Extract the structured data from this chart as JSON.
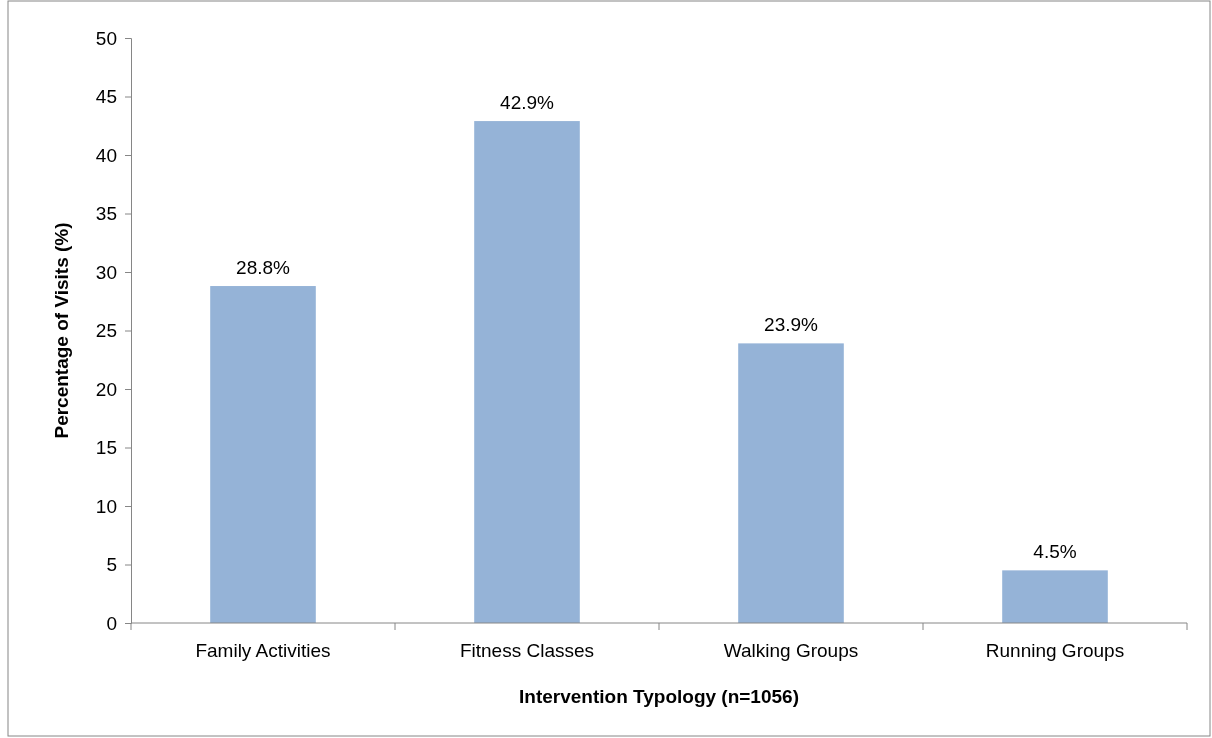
{
  "chart_data": {
    "type": "bar",
    "xlabel": "Intervention Typology (n=1056)",
    "ylabel": "Percentage of Visits (%)",
    "categories": [
      "Family Activities",
      "Fitness Classes",
      "Walking Groups",
      "Running Groups"
    ],
    "values": [
      28.8,
      42.9,
      23.9,
      4.5
    ],
    "value_labels": [
      "28.8%",
      "42.9%",
      "23.9%",
      "4.5%"
    ],
    "color": "#95b3d7",
    "ylim": [
      0,
      50
    ],
    "yticks": [
      0,
      5,
      10,
      15,
      20,
      25,
      30,
      35,
      40,
      45,
      50
    ],
    "grid": false
  }
}
